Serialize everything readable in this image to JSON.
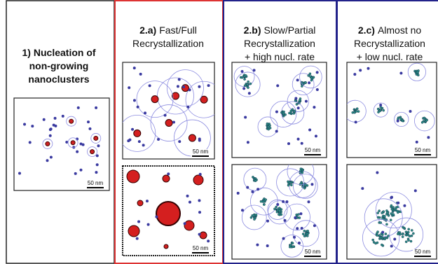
{
  "panels": [
    {
      "label": "1)",
      "title_lines": [
        "Nucleation of",
        "non-growing",
        "nanoclusters"
      ],
      "scale_bars": [
        "50 nm"
      ]
    },
    {
      "label": "2.a)",
      "title_lines": [
        "Fast/Full",
        "Recrystallization"
      ],
      "scale_bars": [
        "50 nm",
        "50 nm"
      ]
    },
    {
      "label": "2.b)",
      "title_lines": [
        "Slow/Partial",
        "Recrystallization",
        "+ high nucl. rate"
      ],
      "scale_bars": [
        "50 nm",
        "50 nm"
      ]
    },
    {
      "label": "2.c)",
      "title_lines": [
        "Almost no",
        "Recrystallization",
        "+ low nucl. rate"
      ],
      "scale_bars": [
        "50 nm",
        "50 nm"
      ]
    }
  ]
}
